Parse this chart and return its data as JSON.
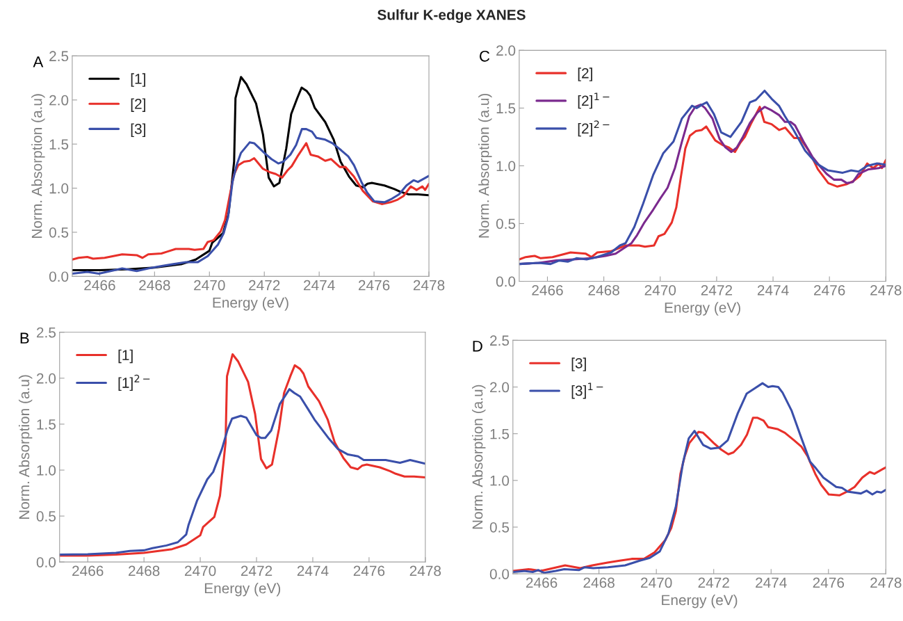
{
  "chart_data": [
    {
      "type": "line",
      "title": "Sulfur K-edge XANES",
      "annotations": [
        "A"
      ],
      "xlabel": "Energy (eV)",
      "ylabel": "Norm. Absorption (a.u)",
      "xlim": [
        2465,
        2478
      ],
      "ylim": [
        0,
        2.5
      ],
      "xticks": [
        2466,
        2468,
        2470,
        2472,
        2474,
        2476,
        2478
      ],
      "yticks": [
        {
          "value": 0,
          "label": "0.0"
        },
        0.5,
        {
          "value": 1,
          "label": "1.0"
        },
        1.5,
        {
          "value": 2,
          "label": "2.0"
        },
        2.5
      ],
      "grid": false,
      "legend": "top left",
      "series": [
        {
          "name": "[1]",
          "color": "#000000",
          "x": [
            2465,
            2466,
            2467,
            2468,
            2469,
            2469.5,
            2470,
            2470.1,
            2470.5,
            2470.7,
            2470.9,
            2470.95,
            2471.15,
            2471.35,
            2471.7,
            2471.95,
            2472.16,
            2472.35,
            2472.55,
            2472.8,
            2472.98,
            2473.2,
            2473.36,
            2473.55,
            2473.67,
            2473.84,
            2474.22,
            2474.53,
            2474.78,
            2475.09,
            2475.35,
            2475.6,
            2475.76,
            2475.92,
            2476.38,
            2476.74,
            2476.95,
            2477.26,
            2477.6,
            2478
          ],
          "values": [
            0.07,
            0.07,
            0.08,
            0.1,
            0.14,
            0.19,
            0.29,
            0.38,
            0.49,
            0.72,
            1.3,
            2.02,
            2.26,
            2.18,
            1.96,
            1.61,
            1.12,
            1.02,
            1.06,
            1.45,
            1.84,
            2.02,
            2.14,
            2.1,
            2.05,
            1.91,
            1.75,
            1.55,
            1.3,
            1.13,
            1.03,
            1.01,
            1.05,
            1.06,
            1.03,
            0.99,
            0.96,
            0.93,
            0.93,
            0.92
          ]
        },
        {
          "name": "[2]",
          "color": "#e8302a",
          "x": [
            2465,
            2465.23,
            2465.55,
            2465.76,
            2466.18,
            2466.82,
            2467.35,
            2467.56,
            2467.77,
            2468.25,
            2468.46,
            2468.77,
            2469.25,
            2469.46,
            2469.78,
            2469.94,
            2470.15,
            2470.41,
            2470.57,
            2470.73,
            2470.89,
            2471.05,
            2471.26,
            2471.47,
            2471.63,
            2471.95,
            2472.21,
            2472.42,
            2472.65,
            2472.84,
            2473.0,
            2473.21,
            2473.53,
            2473.69,
            2473.95,
            2474.22,
            2474.43,
            2474.75,
            2474.96,
            2475.27,
            2475.59,
            2475.96,
            2476.28,
            2476.6,
            2476.86,
            2477.07,
            2477.34,
            2477.55,
            2477.76,
            2477.86,
            2478
          ],
          "values": [
            0.19,
            0.21,
            0.22,
            0.2,
            0.21,
            0.25,
            0.24,
            0.21,
            0.25,
            0.26,
            0.28,
            0.31,
            0.31,
            0.3,
            0.31,
            0.39,
            0.41,
            0.51,
            0.64,
            0.9,
            1.15,
            1.26,
            1.3,
            1.31,
            1.34,
            1.22,
            1.18,
            1.16,
            1.12,
            1.2,
            1.25,
            1.36,
            1.51,
            1.38,
            1.36,
            1.31,
            1.33,
            1.24,
            1.24,
            1.13,
            0.97,
            0.85,
            0.82,
            0.84,
            0.87,
            0.91,
            1.02,
            0.98,
            1.02,
            0.98,
            1.05
          ]
        },
        {
          "name": "[3]",
          "color": "#3a4faa",
          "x": [
            2465,
            2465.55,
            2465.97,
            2466.4,
            2466.82,
            2467.35,
            2467.77,
            2468.3,
            2468.72,
            2469.14,
            2469.57,
            2469.94,
            2470.31,
            2470.52,
            2470.68,
            2470.84,
            2470.99,
            2471.15,
            2471.47,
            2471.63,
            2472.0,
            2472.26,
            2472.51,
            2472.69,
            2472.95,
            2473.16,
            2473.37,
            2473.53,
            2473.74,
            2473.9,
            2474.22,
            2474.48,
            2474.8,
            2475.06,
            2475.27,
            2475.54,
            2475.75,
            2476.01,
            2476.38,
            2476.65,
            2476.91,
            2477.18,
            2477.44,
            2477.6,
            2478
          ],
          "values": [
            0.03,
            0.05,
            0.03,
            0.06,
            0.09,
            0.06,
            0.09,
            0.12,
            0.14,
            0.16,
            0.16,
            0.23,
            0.36,
            0.49,
            0.67,
            1.07,
            1.26,
            1.4,
            1.52,
            1.51,
            1.4,
            1.33,
            1.28,
            1.3,
            1.38,
            1.49,
            1.67,
            1.67,
            1.64,
            1.57,
            1.55,
            1.51,
            1.43,
            1.36,
            1.26,
            1.07,
            0.95,
            0.85,
            0.84,
            0.88,
            0.93,
            1.03,
            1.09,
            1.07,
            1.14
          ]
        }
      ]
    },
    {
      "type": "line",
      "annotations": [
        "C"
      ],
      "xlabel": "Energy (eV)",
      "ylabel": "Norm. Absorption (a.u)",
      "xlim": [
        2465,
        2478
      ],
      "ylim": [
        0,
        2.0
      ],
      "xticks": [
        2466,
        2468,
        2470,
        2472,
        2474,
        2476,
        2478
      ],
      "yticks": [
        {
          "value": 0,
          "label": "0.0"
        },
        0.5,
        {
          "value": 1,
          "label": "1.0"
        },
        1.5,
        {
          "value": 2,
          "label": "2.0"
        }
      ],
      "grid": false,
      "legend": "top left",
      "series": [
        {
          "name": "[2]",
          "color": "#e8302a",
          "x": [
            2465,
            2465.23,
            2465.55,
            2465.76,
            2466.18,
            2466.82,
            2467.35,
            2467.56,
            2467.77,
            2468.25,
            2468.46,
            2468.77,
            2469.25,
            2469.46,
            2469.78,
            2469.94,
            2470.15,
            2470.41,
            2470.57,
            2470.73,
            2470.89,
            2471.05,
            2471.26,
            2471.47,
            2471.63,
            2471.95,
            2472.21,
            2472.42,
            2472.65,
            2472.84,
            2473.0,
            2473.21,
            2473.53,
            2473.69,
            2473.95,
            2474.22,
            2474.43,
            2474.75,
            2474.96,
            2475.27,
            2475.59,
            2475.96,
            2476.28,
            2476.6,
            2476.86,
            2477.07,
            2477.34,
            2477.55,
            2477.76,
            2477.86,
            2478
          ],
          "values": [
            0.19,
            0.21,
            0.22,
            0.2,
            0.21,
            0.25,
            0.24,
            0.21,
            0.25,
            0.26,
            0.28,
            0.31,
            0.31,
            0.3,
            0.31,
            0.39,
            0.41,
            0.51,
            0.64,
            0.9,
            1.15,
            1.26,
            1.3,
            1.31,
            1.34,
            1.22,
            1.18,
            1.16,
            1.12,
            1.2,
            1.25,
            1.36,
            1.51,
            1.38,
            1.36,
            1.31,
            1.33,
            1.24,
            1.24,
            1.13,
            0.97,
            0.85,
            0.82,
            0.84,
            0.87,
            0.91,
            1.02,
            0.98,
            1.02,
            0.98,
            1.05
          ]
        },
        {
          "name": "[2]$^{1−}$",
          "color": "#7b2a8e",
          "x": [
            2465,
            2465.7,
            2466.31,
            2466.93,
            2467.54,
            2468.06,
            2468.42,
            2468.67,
            2468.98,
            2469.18,
            2469.44,
            2469.75,
            2470.01,
            2470.26,
            2470.52,
            2470.77,
            2471.03,
            2471.24,
            2471.44,
            2471.59,
            2471.85,
            2472.11,
            2472.31,
            2472.52,
            2472.72,
            2472.93,
            2473.18,
            2473.44,
            2473.7,
            2473.95,
            2474.21,
            2474.42,
            2474.62,
            2474.78,
            2475.08,
            2475.39,
            2475.65,
            2475.9,
            2476.16,
            2476.42,
            2476.62,
            2476.83,
            2477.03,
            2477.39,
            2477.75,
            2478
          ],
          "values": [
            0.15,
            0.16,
            0.18,
            0.19,
            0.2,
            0.22,
            0.24,
            0.28,
            0.33,
            0.4,
            0.51,
            0.62,
            0.72,
            0.81,
            0.98,
            1.21,
            1.43,
            1.51,
            1.53,
            1.5,
            1.41,
            1.23,
            1.16,
            1.12,
            1.16,
            1.25,
            1.37,
            1.46,
            1.51,
            1.48,
            1.44,
            1.38,
            1.38,
            1.35,
            1.21,
            1.08,
            1.0,
            0.93,
            0.88,
            0.88,
            0.85,
            0.86,
            0.93,
            0.97,
            0.98,
            1.0
          ]
        },
        {
          "name": "[2]$^{2−}$",
          "color": "#3a4faa",
          "x": [
            2465,
            2465.7,
            2466.11,
            2466.42,
            2466.72,
            2467.03,
            2467.39,
            2467.75,
            2468.26,
            2468.57,
            2468.77,
            2469.08,
            2469.39,
            2469.75,
            2470.11,
            2470.47,
            2470.77,
            2471.13,
            2471.29,
            2471.49,
            2471.65,
            2471.9,
            2472.16,
            2472.49,
            2472.88,
            2473.18,
            2473.39,
            2473.7,
            2473.95,
            2474.21,
            2474.42,
            2474.73,
            2475.14,
            2475.54,
            2475.95,
            2476.47,
            2476.77,
            2477.03,
            2477.34,
            2477.69,
            2478
          ],
          "values": [
            0.15,
            0.16,
            0.15,
            0.18,
            0.17,
            0.2,
            0.19,
            0.21,
            0.25,
            0.31,
            0.33,
            0.47,
            0.67,
            0.92,
            1.11,
            1.21,
            1.41,
            1.52,
            1.5,
            1.53,
            1.55,
            1.45,
            1.29,
            1.25,
            1.38,
            1.55,
            1.57,
            1.65,
            1.58,
            1.52,
            1.43,
            1.31,
            1.13,
            1.02,
            0.96,
            0.94,
            0.96,
            0.95,
            1.0,
            1.02,
            1.01
          ]
        }
      ]
    },
    {
      "type": "line",
      "annotations": [
        "B"
      ],
      "xlabel": "Energy (eV)",
      "ylabel": "Norm. Absorption (a.u)",
      "xlim": [
        2465,
        2478
      ],
      "ylim": [
        0,
        2.5
      ],
      "xticks": [
        2466,
        2468,
        2470,
        2472,
        2474,
        2476,
        2478
      ],
      "yticks": [
        {
          "value": 0,
          "label": "0.0"
        },
        0.5,
        {
          "value": 1,
          "label": "1.0"
        },
        1.5,
        {
          "value": 2,
          "label": "2.0"
        },
        2.5
      ],
      "grid": false,
      "legend": "top left",
      "series": [
        {
          "name": "[1]",
          "color": "#e8302a",
          "x": [
            2465,
            2466,
            2467,
            2468,
            2469,
            2469.5,
            2470,
            2470.1,
            2470.5,
            2470.7,
            2470.9,
            2470.95,
            2471.15,
            2471.35,
            2471.7,
            2471.95,
            2472.16,
            2472.35,
            2472.55,
            2472.8,
            2472.98,
            2473.2,
            2473.36,
            2473.55,
            2473.67,
            2473.84,
            2474.22,
            2474.53,
            2474.78,
            2475.09,
            2475.35,
            2475.6,
            2475.76,
            2475.92,
            2476.38,
            2476.74,
            2476.95,
            2477.26,
            2477.6,
            2478
          ],
          "values": [
            0.07,
            0.07,
            0.08,
            0.1,
            0.14,
            0.19,
            0.29,
            0.38,
            0.49,
            0.72,
            1.3,
            2.02,
            2.26,
            2.18,
            1.96,
            1.61,
            1.12,
            1.02,
            1.06,
            1.45,
            1.84,
            2.02,
            2.14,
            2.1,
            2.05,
            1.91,
            1.75,
            1.55,
            1.3,
            1.13,
            1.03,
            1.01,
            1.05,
            1.06,
            1.03,
            0.99,
            0.96,
            0.93,
            0.93,
            0.92
          ]
        },
        {
          "name": "[1]$^{2−}$",
          "color": "#3a4faa",
          "x": [
            2465,
            2466,
            2467,
            2467.5,
            2468,
            2468.3,
            2468.8,
            2469.2,
            2469.5,
            2469.58,
            2469.89,
            2470.25,
            2470.46,
            2470.77,
            2470.97,
            2471.13,
            2471.44,
            2471.64,
            2472.0,
            2472.16,
            2472.31,
            2472.52,
            2472.83,
            2473.17,
            2473.34,
            2473.55,
            2473.86,
            2474.06,
            2474.58,
            2474.89,
            2475.25,
            2475.61,
            2475.81,
            2476.07,
            2476.59,
            2477.1,
            2477.46,
            2478
          ],
          "values": [
            0.08,
            0.085,
            0.1,
            0.12,
            0.127,
            0.15,
            0.18,
            0.215,
            0.3,
            0.4,
            0.67,
            0.9,
            0.98,
            1.23,
            1.44,
            1.56,
            1.59,
            1.57,
            1.38,
            1.35,
            1.35,
            1.43,
            1.72,
            1.88,
            1.84,
            1.8,
            1.65,
            1.55,
            1.34,
            1.23,
            1.17,
            1.15,
            1.11,
            1.11,
            1.11,
            1.08,
            1.11,
            1.07
          ]
        }
      ]
    },
    {
      "type": "line",
      "annotations": [
        "D"
      ],
      "xlabel": "Energy (eV)",
      "ylabel": "Norm. Absorption (a.u)",
      "xlim": [
        2465,
        2478
      ],
      "ylim": [
        0,
        2.5
      ],
      "xticks": [
        2466,
        2468,
        2470,
        2472,
        2474,
        2476,
        2478
      ],
      "yticks": [
        {
          "value": 0,
          "label": "0.0"
        },
        0.5,
        {
          "value": 1,
          "label": "1.0"
        },
        1.5,
        {
          "value": 2,
          "label": "2.0"
        },
        2.5
      ],
      "grid": false,
      "legend": "top left",
      "series": [
        {
          "name": "[3]",
          "color": "#e8302a",
          "x": [
            2465,
            2465.55,
            2465.97,
            2466.4,
            2466.82,
            2467.35,
            2467.77,
            2468.3,
            2468.72,
            2469.14,
            2469.57,
            2469.94,
            2470.31,
            2470.52,
            2470.68,
            2470.84,
            2470.99,
            2471.15,
            2471.47,
            2471.63,
            2472.0,
            2472.26,
            2472.51,
            2472.69,
            2472.95,
            2473.16,
            2473.37,
            2473.53,
            2473.74,
            2473.9,
            2474.22,
            2474.48,
            2474.8,
            2475.06,
            2475.27,
            2475.54,
            2475.75,
            2476.01,
            2476.38,
            2476.65,
            2476.91,
            2477.18,
            2477.44,
            2477.6,
            2478
          ],
          "values": [
            0.03,
            0.05,
            0.03,
            0.06,
            0.09,
            0.06,
            0.09,
            0.12,
            0.14,
            0.16,
            0.16,
            0.23,
            0.36,
            0.49,
            0.67,
            1.07,
            1.26,
            1.4,
            1.52,
            1.51,
            1.4,
            1.33,
            1.28,
            1.3,
            1.38,
            1.49,
            1.67,
            1.67,
            1.64,
            1.57,
            1.55,
            1.51,
            1.43,
            1.36,
            1.26,
            1.07,
            0.95,
            0.85,
            0.84,
            0.88,
            0.93,
            1.03,
            1.09,
            1.07,
            1.14
          ]
        },
        {
          "name": "[3]$^{1−}$",
          "color": "#3a4faa",
          "x": [
            2465,
            2465.38,
            2465.69,
            2465.89,
            2466.09,
            2466.49,
            2466.79,
            2467.3,
            2467.5,
            2467.8,
            2468.31,
            2468.91,
            2469.42,
            2469.77,
            2470.12,
            2470.42,
            2470.68,
            2470.93,
            2471.13,
            2471.33,
            2471.63,
            2471.89,
            2472.19,
            2472.49,
            2472.84,
            2473.15,
            2473.4,
            2473.7,
            2473.9,
            2474.05,
            2474.25,
            2474.4,
            2474.71,
            2475.06,
            2475.36,
            2475.56,
            2475.82,
            2476.27,
            2476.47,
            2476.67,
            2477.13,
            2477.33,
            2477.53,
            2477.69,
            2477.84,
            2478
          ],
          "values": [
            0.02,
            0.03,
            0.02,
            0.04,
            0.01,
            0.03,
            0.05,
            0.04,
            0.07,
            0.06,
            0.07,
            0.09,
            0.14,
            0.17,
            0.24,
            0.43,
            0.72,
            1.19,
            1.45,
            1.53,
            1.38,
            1.34,
            1.35,
            1.43,
            1.72,
            1.93,
            1.98,
            2.04,
            2.0,
            2.01,
            2.0,
            1.94,
            1.75,
            1.45,
            1.2,
            1.13,
            1.03,
            0.93,
            0.92,
            0.88,
            0.86,
            0.89,
            0.85,
            0.88,
            0.87,
            0.9
          ]
        }
      ]
    }
  ]
}
